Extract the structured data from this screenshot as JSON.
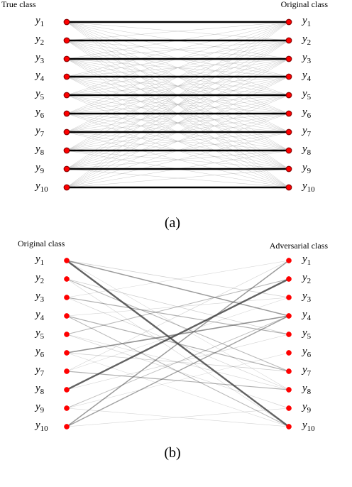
{
  "panel_a": {
    "left_header": "True class",
    "right_header": "Original class",
    "caption": "(a)",
    "left_labels": [
      "y1",
      "y2",
      "y3",
      "y4",
      "y5",
      "y6",
      "y7",
      "y8",
      "y9",
      "y10"
    ],
    "right_labels": [
      "y1",
      "y2",
      "y3",
      "y4",
      "y5",
      "y6",
      "y7",
      "y8",
      "y9",
      "y10"
    ],
    "strong_links": [
      [
        0,
        0
      ],
      [
        1,
        1
      ],
      [
        2,
        2
      ],
      [
        3,
        3
      ],
      [
        4,
        4
      ],
      [
        5,
        5
      ],
      [
        6,
        6
      ],
      [
        7,
        7
      ],
      [
        8,
        8
      ],
      [
        9,
        9
      ]
    ],
    "weak_links": "all-other-pairs"
  },
  "panel_b": {
    "left_header": "Original class",
    "right_header": "Adversarial class",
    "caption": "(b)",
    "left_labels": [
      "y1",
      "y2",
      "y3",
      "y4",
      "y5",
      "y6",
      "y7",
      "y8",
      "y9",
      "y10"
    ],
    "right_labels": [
      "y1",
      "y2",
      "y3",
      "y4",
      "y5",
      "y6",
      "y7",
      "y8",
      "y9",
      "y10"
    ],
    "links": [
      {
        "from": 0,
        "to": 9,
        "weight": 0.9
      },
      {
        "from": 7,
        "to": 1,
        "weight": 0.9
      },
      {
        "from": 0,
        "to": 3,
        "weight": 0.5
      },
      {
        "from": 5,
        "to": 3,
        "weight": 0.55
      },
      {
        "from": 9,
        "to": 0,
        "weight": 0.5
      },
      {
        "from": 9,
        "to": 3,
        "weight": 0.45
      },
      {
        "from": 2,
        "to": 4,
        "weight": 0.35
      },
      {
        "from": 3,
        "to": 6,
        "weight": 0.35
      },
      {
        "from": 6,
        "to": 7,
        "weight": 0.35
      },
      {
        "from": 4,
        "to": 1,
        "weight": 0.3
      },
      {
        "from": 1,
        "to": 6,
        "weight": 0.3
      },
      {
        "from": 3,
        "to": 9,
        "weight": 0.3
      },
      {
        "from": 8,
        "to": 3,
        "weight": 0.25
      },
      {
        "from": 0,
        "to": 2,
        "weight": 0.15
      },
      {
        "from": 1,
        "to": 4,
        "weight": 0.15
      },
      {
        "from": 2,
        "to": 7,
        "weight": 0.12
      },
      {
        "from": 4,
        "to": 8,
        "weight": 0.12
      },
      {
        "from": 5,
        "to": 6,
        "weight": 0.15
      },
      {
        "from": 8,
        "to": 9,
        "weight": 0.1
      },
      {
        "from": 9,
        "to": 8,
        "weight": 0.1
      },
      {
        "from": 6,
        "to": 0,
        "weight": 0.1
      },
      {
        "from": 3,
        "to": 2,
        "weight": 0.1
      },
      {
        "from": 1,
        "to": 9,
        "weight": 0.1
      },
      {
        "from": 4,
        "to": 7,
        "weight": 0.1
      },
      {
        "from": 7,
        "to": 4,
        "weight": 0.1
      },
      {
        "from": 2,
        "to": 0,
        "weight": 0.08
      },
      {
        "from": 8,
        "to": 5,
        "weight": 0.08
      },
      {
        "from": 5,
        "to": 9,
        "weight": 0.08
      },
      {
        "from": 0,
        "to": 7,
        "weight": 0.08
      },
      {
        "from": 6,
        "to": 2,
        "weight": 0.08
      }
    ]
  },
  "colors": {
    "node": "#ff0000",
    "node_ring": "#8b0000",
    "strong_edge": "#000000",
    "weak_edge": "#b0b0b0",
    "adv_edge": "#404040"
  }
}
